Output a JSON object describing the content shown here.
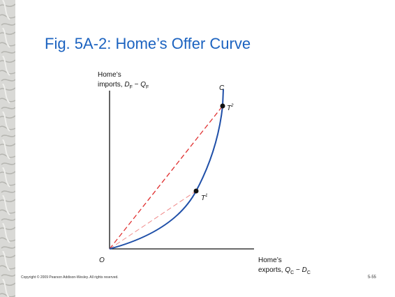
{
  "title": "Fig. 5A-2: Home’s Offer Curve",
  "y_axis_label": {
    "line1": "Home’s",
    "line2": [
      {
        "text": "imports, "
      },
      {
        "text": "D",
        "italic": true
      },
      {
        "sub": "F"
      },
      {
        "text": " − "
      },
      {
        "text": "Q",
        "italic": true
      },
      {
        "sub": "F"
      }
    ]
  },
  "x_axis_label": {
    "line1": "Home’s",
    "line2": [
      {
        "text": "exports, "
      },
      {
        "text": "Q",
        "italic": true
      },
      {
        "sub": "C"
      },
      {
        "text": " − "
      },
      {
        "text": "D",
        "italic": true
      },
      {
        "sub": "C"
      }
    ]
  },
  "origin_label": "O",
  "curve_label": "C",
  "points": [
    {
      "label": "T",
      "sup": "1"
    },
    {
      "label": "T",
      "sup": "2"
    }
  ],
  "footer": {
    "copyright": "Copyright © 2009 Pearson Addison-Wesley. All rights reserved.",
    "page": "5-55"
  }
}
